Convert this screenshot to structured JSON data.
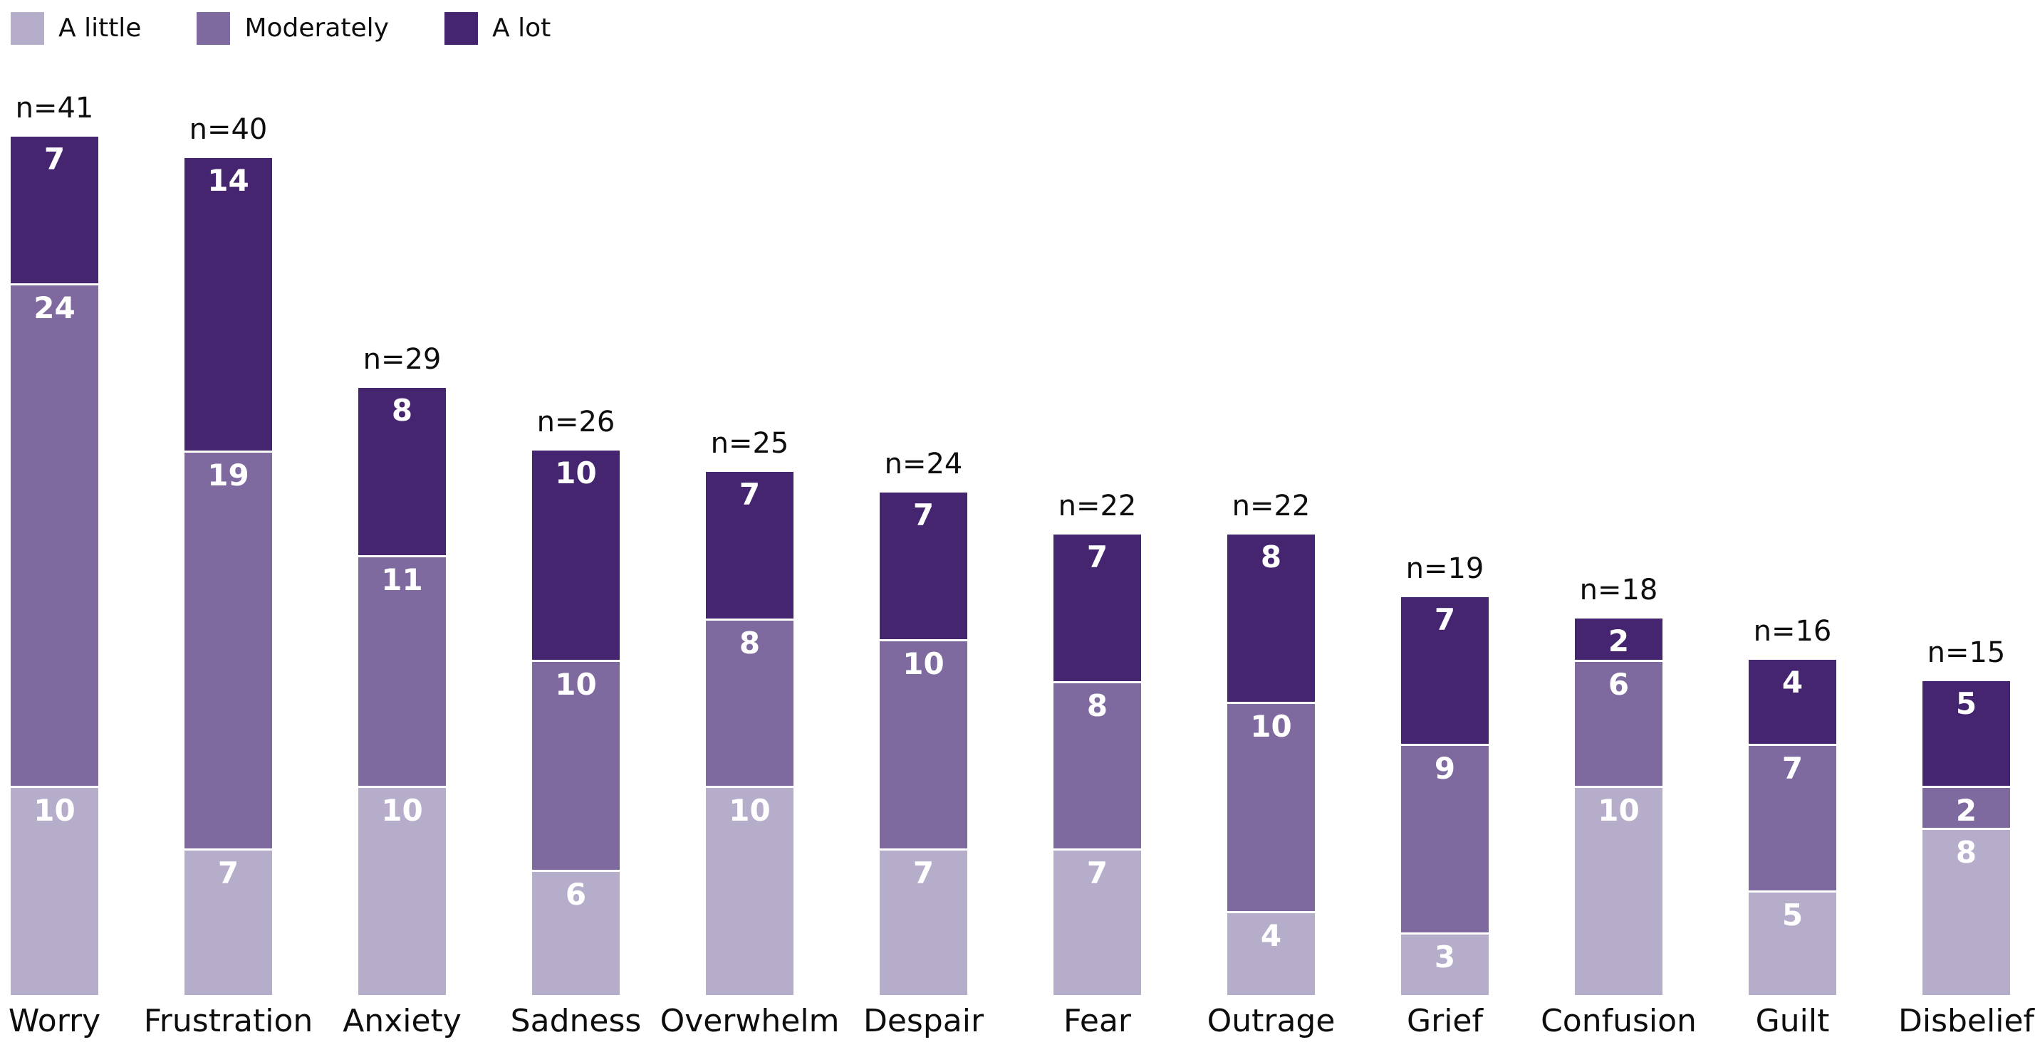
{
  "chart_data": {
    "type": "bar",
    "stacked": true,
    "orientation": "vertical",
    "title": "",
    "xlabel": "",
    "ylabel": "",
    "axis_visible": false,
    "grid": false,
    "background": "#ffffff",
    "legend_position": "top-left",
    "value_label_color": "#ffffff",
    "text_color": "#0d0d0d",
    "categories": [
      "Worry",
      "Frustration",
      "Anxiety",
      "Sadness",
      "Overwhelm",
      "Despair",
      "Fear",
      "Outrage",
      "Grief",
      "Confusion",
      "Guilt",
      "Disbelief"
    ],
    "n_labels": [
      "n=41",
      "n=40",
      "n=29",
      "n=26",
      "n=25",
      "n=24",
      "n=22",
      "n=22",
      "n=19",
      "n=18",
      "n=16",
      "n=15"
    ],
    "totals": [
      41,
      40,
      29,
      26,
      25,
      24,
      22,
      22,
      19,
      18,
      16,
      15
    ],
    "series": [
      {
        "name": "A little",
        "color": "#b6adcb",
        "values": [
          10,
          7,
          10,
          6,
          10,
          7,
          7,
          4,
          3,
          10,
          5,
          8
        ]
      },
      {
        "name": "Moderately",
        "color": "#7f6aa0",
        "values": [
          24,
          19,
          11,
          10,
          8,
          10,
          8,
          10,
          9,
          6,
          7,
          2
        ]
      },
      {
        "name": "A lot",
        "color": "#452470",
        "values": [
          7,
          14,
          8,
          10,
          7,
          7,
          7,
          8,
          7,
          2,
          4,
          5
        ]
      }
    ],
    "ylim": [
      0,
      41
    ]
  },
  "layout_note": ""
}
